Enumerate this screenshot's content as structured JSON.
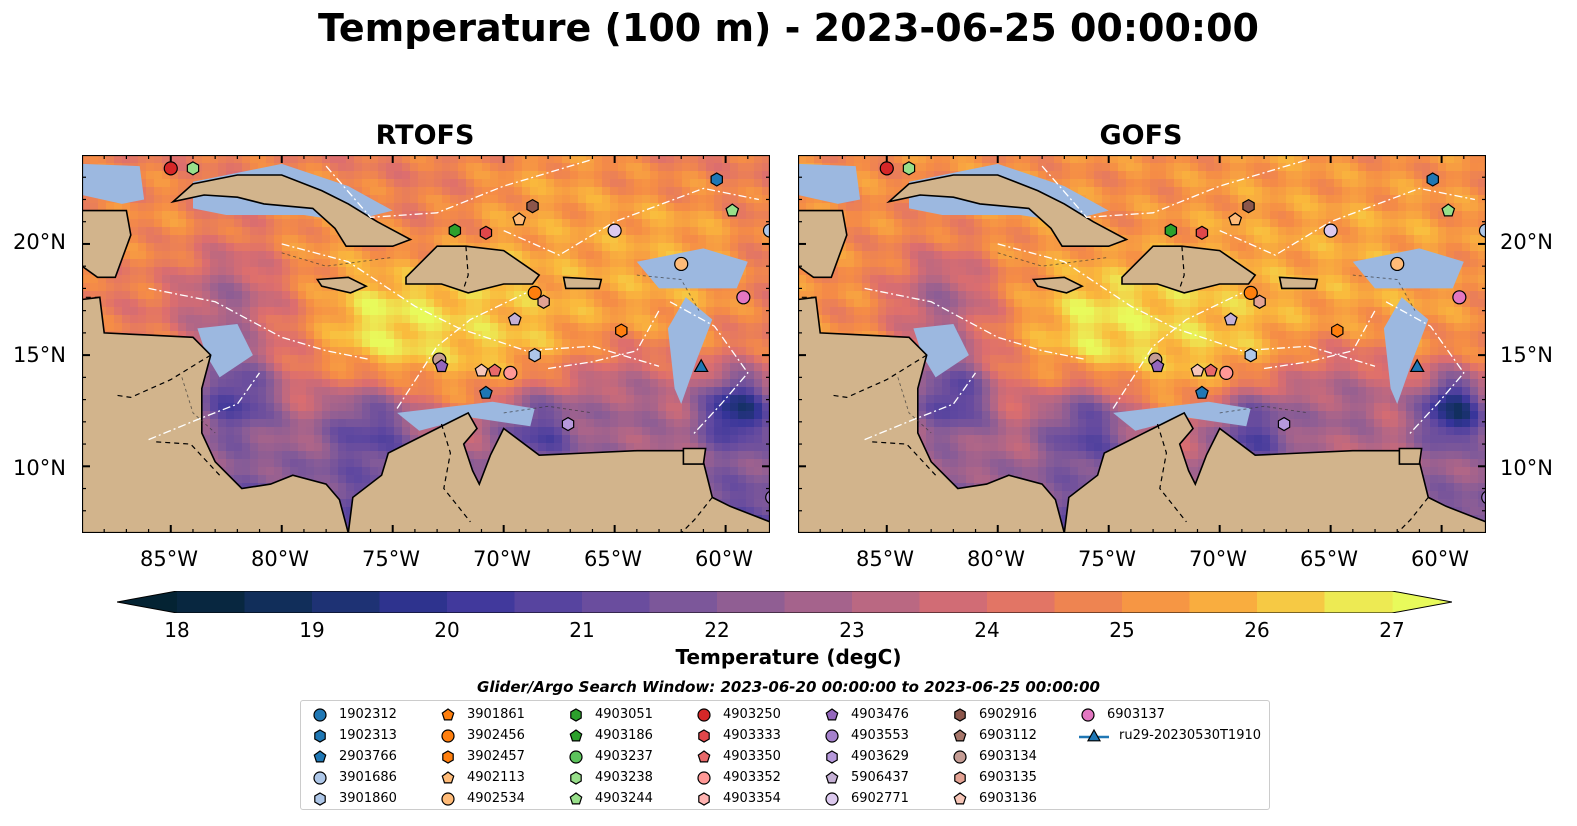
{
  "title": "Temperature (100 m) - 2023-06-25 00:00:00",
  "panels": [
    {
      "title": "RTOFS",
      "id": "rtofs"
    },
    {
      "title": "GOFS",
      "id": "gofs"
    }
  ],
  "lat_labels": [
    "20°N",
    "15°N",
    "10°N"
  ],
  "lon_labels": [
    "85°W",
    "80°W",
    "75°W",
    "70°W",
    "65°W",
    "60°W"
  ],
  "colorbar": {
    "label": "Temperature (degC)",
    "min": 18,
    "max": 27,
    "step": 0.5,
    "ticks": [
      "18",
      "19",
      "20",
      "21",
      "22",
      "23",
      "24",
      "25",
      "26",
      "27"
    ],
    "colormap": "thermal",
    "extend": "both"
  },
  "search_window": "Glider/Argo Search Window: 2023-06-20 00:00:00 to 2023-06-25 00:00:00",
  "colors": {
    "land": "#d2b48c",
    "shelf": "#9cb8e0",
    "coast": "#000000"
  },
  "legend": [
    {
      "label": "1902312",
      "marker": "circle",
      "color": "#1f77b4"
    },
    {
      "label": "1902313",
      "marker": "hexagon",
      "color": "#1f77b4"
    },
    {
      "label": "2903766",
      "marker": "pentagon",
      "color": "#1f77b4"
    },
    {
      "label": "3901686",
      "marker": "circle",
      "color": "#aec7e8"
    },
    {
      "label": "3901860",
      "marker": "hexagon",
      "color": "#aec7e8"
    },
    {
      "label": "3901861",
      "marker": "pentagon",
      "color": "#ff7f0e"
    },
    {
      "label": "3902456",
      "marker": "circle",
      "color": "#ff7f0e"
    },
    {
      "label": "3902457",
      "marker": "hexagon",
      "color": "#ff7f0e"
    },
    {
      "label": "4902113",
      "marker": "pentagon",
      "color": "#ffbb78"
    },
    {
      "label": "4902534",
      "marker": "circle",
      "color": "#ffbb78"
    },
    {
      "label": "4903051",
      "marker": "hexagon",
      "color": "#2ca02c"
    },
    {
      "label": "4903186",
      "marker": "pentagon",
      "color": "#2ca02c"
    },
    {
      "label": "4903237",
      "marker": "circle",
      "color": "#5cc35c"
    },
    {
      "label": "4903238",
      "marker": "hexagon",
      "color": "#98df8a"
    },
    {
      "label": "4903244",
      "marker": "pentagon",
      "color": "#98df8a"
    },
    {
      "label": "4903250",
      "marker": "circle",
      "color": "#d62728"
    },
    {
      "label": "4903333",
      "marker": "hexagon",
      "color": "#e0474a"
    },
    {
      "label": "4903350",
      "marker": "pentagon",
      "color": "#e8696a"
    },
    {
      "label": "4903352",
      "marker": "circle",
      "color": "#ff9896"
    },
    {
      "label": "4903354",
      "marker": "hexagon",
      "color": "#ffb3b1"
    },
    {
      "label": "4903476",
      "marker": "pentagon",
      "color": "#9467bd"
    },
    {
      "label": "4903553",
      "marker": "circle",
      "color": "#a581cc"
    },
    {
      "label": "4903629",
      "marker": "hexagon",
      "color": "#b699db"
    },
    {
      "label": "5906437",
      "marker": "pentagon",
      "color": "#c5b0d5"
    },
    {
      "label": "6902771",
      "marker": "circle",
      "color": "#dcc9ee"
    },
    {
      "label": "6902916",
      "marker": "hexagon",
      "color": "#8c564b"
    },
    {
      "label": "6903112",
      "marker": "pentagon",
      "color": "#a6766a"
    },
    {
      "label": "6903134",
      "marker": "circle",
      "color": "#c49c94"
    },
    {
      "label": "6903135",
      "marker": "hexagon",
      "color": "#e3a293"
    },
    {
      "label": "6903136",
      "marker": "pentagon",
      "color": "#f7c6b8"
    },
    {
      "label": "6903137",
      "marker": "circle",
      "color": "#e377c2"
    },
    {
      "label": "ru29-20230530T1910",
      "marker": "triangle-line",
      "color": "#1f77b4"
    }
  ],
  "observations": [
    {
      "id": "4903250",
      "lon": -85.0,
      "lat": 23.4
    },
    {
      "id": "4903238",
      "lon": -84.0,
      "lat": 23.4
    },
    {
      "id": "1902313",
      "lon": -60.4,
      "lat": 22.9
    },
    {
      "id": "4903244",
      "lon": -59.7,
      "lat": 21.5
    },
    {
      "id": "6902916",
      "lon": -68.7,
      "lat": 21.7
    },
    {
      "id": "4902113",
      "lon": -69.3,
      "lat": 21.1
    },
    {
      "id": "4903051",
      "lon": -72.2,
      "lat": 20.6
    },
    {
      "id": "4903333",
      "lon": -70.8,
      "lat": 20.5
    },
    {
      "id": "6902771",
      "lon": -65.0,
      "lat": 20.6
    },
    {
      "id": "3901686",
      "lon": -58.0,
      "lat": 20.6
    },
    {
      "id": "4902534",
      "lon": -62.0,
      "lat": 19.1
    },
    {
      "id": "3902456",
      "lon": -68.6,
      "lat": 17.8
    },
    {
      "id": "6903135",
      "lon": -68.2,
      "lat": 17.4
    },
    {
      "id": "6903137",
      "lon": -59.2,
      "lat": 17.6
    },
    {
      "id": "3902457",
      "lon": -64.7,
      "lat": 16.1
    },
    {
      "id": "5906437",
      "lon": -69.5,
      "lat": 16.6
    },
    {
      "id": "3901860",
      "lon": -68.6,
      "lat": 15.0
    },
    {
      "id": "6903134",
      "lon": -72.9,
      "lat": 14.8
    },
    {
      "id": "4903476",
      "lon": -72.8,
      "lat": 14.5
    },
    {
      "id": "6903136",
      "lon": -71.0,
      "lat": 14.3
    },
    {
      "id": "4903350",
      "lon": -70.4,
      "lat": 14.3
    },
    {
      "id": "4903352",
      "lon": -69.7,
      "lat": 14.2
    },
    {
      "id": "2903766",
      "lon": -70.8,
      "lat": 13.3
    },
    {
      "id": "4903629",
      "lon": -67.1,
      "lat": 11.9
    },
    {
      "id": "4903553",
      "lon": -57.9,
      "lat": 8.6
    },
    {
      "id": "ru29-20230530T1910",
      "lon": -61.1,
      "lat": 14.5
    }
  ]
}
